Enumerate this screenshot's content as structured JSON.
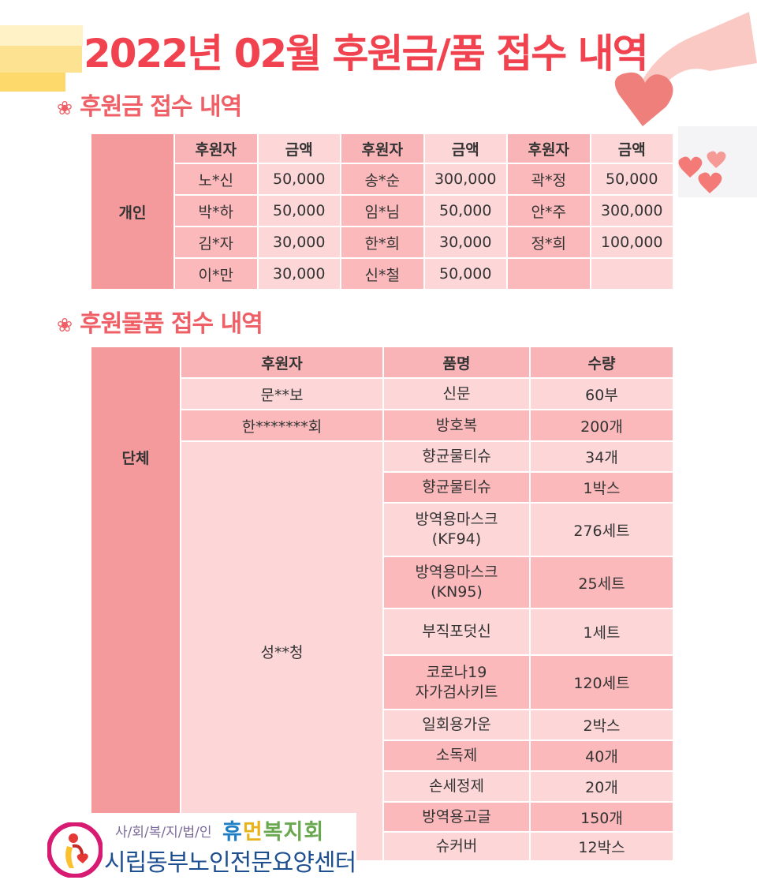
{
  "title": "2022년 02월 후원금/품 접수 내역",
  "section1": {
    "heading": "후원금 접수 내역",
    "row_label": "개인",
    "headers": [
      "후원자",
      "금액",
      "후원자",
      "금액",
      "후원자",
      "금액"
    ],
    "rows": [
      [
        "노*신",
        "50,000",
        "송*순",
        "300,000",
        "곽*정",
        "50,000"
      ],
      [
        "박*하",
        "50,000",
        "임*님",
        "50,000",
        "안*주",
        "300,000"
      ],
      [
        "김*자",
        "30,000",
        "한*희",
        "30,000",
        "정*희",
        "100,000"
      ],
      [
        "이*만",
        "30,000",
        "신*철",
        "50,000",
        "",
        ""
      ]
    ]
  },
  "section2": {
    "heading": "후원물품 접수 내역",
    "row_label": "단체",
    "headers": [
      "후원자",
      "품명",
      "수량"
    ],
    "donors": [
      "문**보",
      "한*******회",
      "성**청"
    ],
    "items": [
      [
        "신문",
        "60부"
      ],
      [
        "방호복",
        "200개"
      ],
      [
        "향균물티슈",
        "34개"
      ],
      [
        "향균물티슈",
        "1박스"
      ],
      [
        "방역용마스크\n(KF94)",
        "276세트"
      ],
      [
        "방역용마스크\n(KN95)",
        "25세트"
      ],
      [
        "부직포덧신",
        "1세트"
      ],
      [
        "코로나19\n자가검사키트",
        "120세트"
      ],
      [
        "일회용가운",
        "2박스"
      ],
      [
        "소독제",
        "40개"
      ],
      [
        "손세정제",
        "20개"
      ],
      [
        "방역용고글",
        "150개"
      ],
      [
        "슈커버",
        "12박스"
      ]
    ]
  },
  "logo": {
    "org_type": "사/회/복/지/법/인",
    "org_name": "휴먼복지회",
    "center_name": "시립동부노인전문요양센터"
  },
  "colors": {
    "title": "#f0434f",
    "label": "#f59a9c",
    "header": "#f8b4b6",
    "row_light": "#fdd6d8",
    "row_dark": "#fbb9bb"
  }
}
